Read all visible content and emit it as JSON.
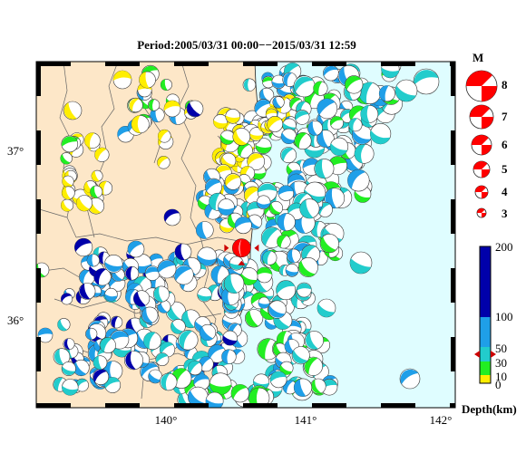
{
  "title": "Period:2005/03/31 00:00−−2015/03/31 12:59",
  "map": {
    "lon_ticks": [
      "140°",
      "141°",
      "142°"
    ],
    "lat_ticks": [
      "37°",
      "36°"
    ],
    "lon_range": [
      139.1,
      142.1
    ],
    "lat_range": [
      35.55,
      37.5
    ],
    "land_color": "#fde7c8",
    "sea_color": "#dffdff"
  },
  "magnitude_legend": {
    "header": "M",
    "items": [
      "8",
      "7",
      "6",
      "5",
      "4",
      "3"
    ],
    "color": "#ff0000"
  },
  "depth_scale": {
    "title": "Depth(km)",
    "ticks": [
      "200",
      "100",
      "50",
      "30",
      "10",
      "0"
    ],
    "bands": [
      {
        "from": 0,
        "to": 10,
        "color": "#ffee00"
      },
      {
        "from": 10,
        "to": 30,
        "color": "#22ee22"
      },
      {
        "from": 30,
        "to": 50,
        "color": "#22cccc"
      },
      {
        "from": 50,
        "to": 100,
        "color": "#1f9fe8"
      },
      {
        "from": 100,
        "to": 200,
        "color": "#0000aa"
      }
    ],
    "marker_depth": 40
  },
  "highlight_event": {
    "lon": 140.57,
    "lat": 36.45,
    "color": "#ff0000",
    "marker_color": "#cc0000"
  }
}
